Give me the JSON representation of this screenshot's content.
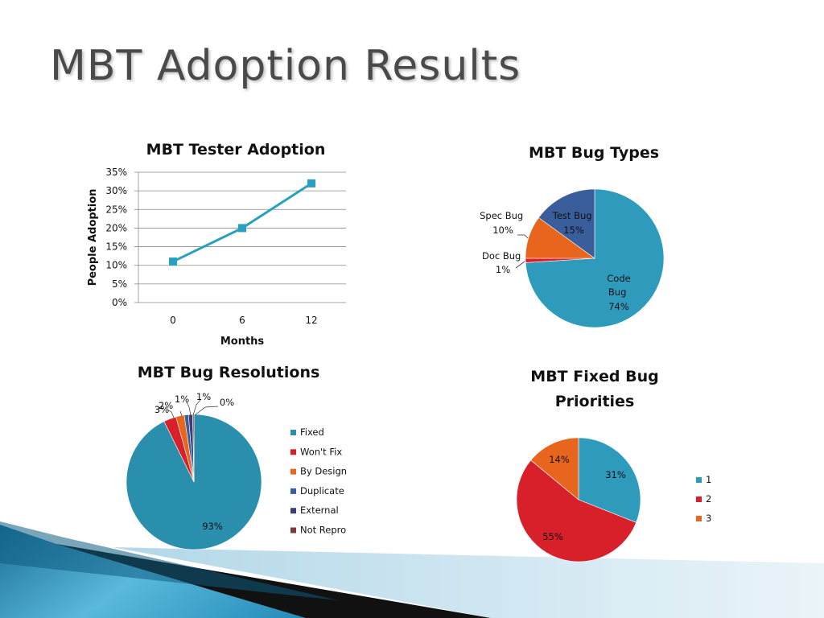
{
  "slide": {
    "title": "MBT Adoption Results"
  },
  "colors": {
    "title": "#4a4a4a",
    "teal": "#2e9bbd",
    "red": "#d8202a",
    "orange": "#e8651e",
    "blue": "#3a5d9c"
  },
  "chart_data": [
    {
      "id": "tester-adoption",
      "type": "line",
      "title": "MBT Tester Adoption",
      "xlabel": "Months",
      "ylabel": "People Adoption",
      "categories": [
        "0",
        "6",
        "12"
      ],
      "series": [
        {
          "values": [
            11,
            20,
            32
          ],
          "color": "#2aa0c0"
        }
      ],
      "ylim": [
        0,
        35
      ],
      "yticks": [
        "0%",
        "5%",
        "10%",
        "15%",
        "20%",
        "25%",
        "30%",
        "35%"
      ],
      "grid": true
    },
    {
      "id": "bug-types",
      "type": "pie",
      "title": "MBT Bug Types",
      "slices": [
        {
          "label": "Code Bug",
          "value": 74,
          "display": "74%",
          "color": "#2e9bbd"
        },
        {
          "label": "Doc Bug",
          "value": 1,
          "display": "1%",
          "color": "#d8202a"
        },
        {
          "label": "Spec Bug",
          "value": 10,
          "display": "10%",
          "color": "#e8651e"
        },
        {
          "label": "Test Bug",
          "value": 15,
          "display": "15%",
          "color": "#3a5d9c"
        }
      ]
    },
    {
      "id": "bug-resolutions",
      "type": "pie",
      "title": "MBT Bug Resolutions",
      "legend": "right",
      "slices": [
        {
          "label": "Fixed",
          "value": 93,
          "display": "93%",
          "color": "#2a8fad"
        },
        {
          "label": "Won't Fix",
          "value": 3,
          "display": "3%",
          "color": "#d8202a"
        },
        {
          "label": "By Design",
          "value": 2,
          "display": "2%",
          "color": "#e8651e"
        },
        {
          "label": "Duplicate",
          "value": 1,
          "display": "1%",
          "color": "#3a5d9c"
        },
        {
          "label": "External",
          "value": 1,
          "display": "1%",
          "color": "#3b3f73"
        },
        {
          "label": "Not Repro",
          "value": 0.3,
          "display": "0%",
          "color": "#7a3a3a"
        }
      ]
    },
    {
      "id": "fixed-bug-priorities",
      "type": "pie",
      "title": "MBT Fixed Bug Priorities",
      "legend": "right",
      "slices": [
        {
          "label": "1",
          "value": 31,
          "display": "31%",
          "color": "#2e9bbd"
        },
        {
          "label": "2",
          "value": 55,
          "display": "55%",
          "color": "#d8202a"
        },
        {
          "label": "3",
          "value": 14,
          "display": "14%",
          "color": "#e8651e"
        }
      ]
    }
  ]
}
